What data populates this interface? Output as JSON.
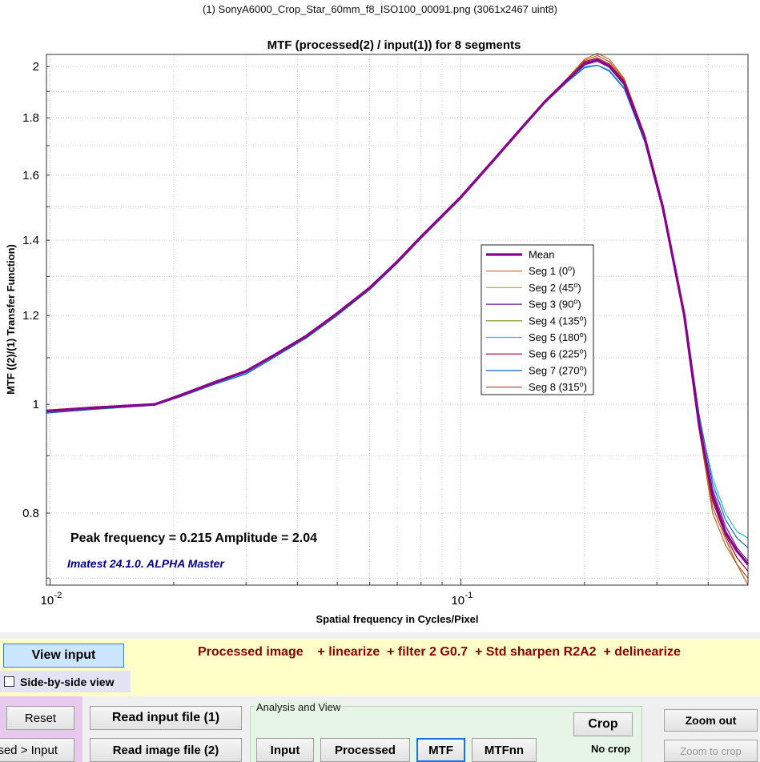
{
  "window_title": "(1) SonyA6000_Crop_Star_60mm_f8_ISO100_00091.png  (3061x2467  uint8)",
  "chart_data": {
    "type": "line",
    "title": "MTF (processed(2) / input(1)) for 8 segments",
    "xlabel": "Spatial frequency in Cycles/Pixel",
    "ylabel": "MTF  ((2)/(1) Transfer Function)",
    "xscale": "log",
    "yscale": "log",
    "xlim": [
      0.0098,
      0.5
    ],
    "ylim": [
      0.69,
      2.05
    ],
    "grid": true,
    "legend_position": "center-right",
    "x_ticks": [
      0.01,
      0.1
    ],
    "x_tick_labels": [
      "10",
      "10"
    ],
    "x_tick_exponents": [
      "-2",
      "-1"
    ],
    "y_ticks": [
      0.8,
      1,
      1.2,
      1.4,
      1.6,
      1.8,
      2
    ],
    "y_tick_labels": [
      "0.8",
      "1",
      "1.2",
      "1.4",
      "1.6",
      "1.8",
      "2"
    ],
    "x": [
      0.0098,
      0.013,
      0.018,
      0.021,
      0.025,
      0.03,
      0.035,
      0.042,
      0.05,
      0.06,
      0.07,
      0.08,
      0.1,
      0.12,
      0.14,
      0.16,
      0.18,
      0.2,
      0.215,
      0.23,
      0.25,
      0.28,
      0.31,
      0.35,
      0.38,
      0.41,
      0.44,
      0.47,
      0.5
    ],
    "series": [
      {
        "name": "Mean",
        "color": "#8b008b",
        "width": 3.2,
        "values": [
          0.986,
          0.993,
          1.0,
          1.02,
          1.045,
          1.07,
          1.105,
          1.15,
          1.205,
          1.27,
          1.34,
          1.41,
          1.53,
          1.65,
          1.76,
          1.86,
          1.94,
          2.01,
          2.025,
          2.0,
          1.93,
          1.73,
          1.5,
          1.2,
          0.96,
          0.83,
          0.77,
          0.74,
          0.72
        ]
      },
      {
        "name": "Seg 1 (0",
        "degree": "o",
        "suffix": ")",
        "color": "#c8641e",
        "width": 1.2,
        "values": [
          0.984,
          0.992,
          1.0,
          1.02,
          1.045,
          1.07,
          1.106,
          1.152,
          1.207,
          1.272,
          1.342,
          1.412,
          1.532,
          1.652,
          1.762,
          1.862,
          1.945,
          2.03,
          2.055,
          2.03,
          1.95,
          1.74,
          1.5,
          1.2,
          0.95,
          0.8,
          0.75,
          0.72,
          0.69
        ]
      },
      {
        "name": "Seg 2 (45",
        "degree": "o",
        "suffix": ")",
        "color": "#c8b400",
        "width": 1.2,
        "values": [
          0.986,
          0.993,
          1.0,
          1.02,
          1.045,
          1.07,
          1.105,
          1.15,
          1.205,
          1.27,
          1.34,
          1.41,
          1.53,
          1.65,
          1.76,
          1.86,
          1.94,
          2.01,
          2.03,
          2.0,
          1.93,
          1.73,
          1.5,
          1.2,
          0.96,
          0.83,
          0.77,
          0.74,
          0.72
        ]
      },
      {
        "name": "Seg 3 (90",
        "degree": "o",
        "suffix": ")",
        "color": "#6a1b9a",
        "width": 1.2,
        "values": [
          0.987,
          0.994,
          1.0,
          1.021,
          1.046,
          1.071,
          1.106,
          1.151,
          1.206,
          1.271,
          1.341,
          1.411,
          1.531,
          1.651,
          1.761,
          1.861,
          1.942,
          2.015,
          2.03,
          2.005,
          1.935,
          1.735,
          1.5,
          1.2,
          0.96,
          0.84,
          0.78,
          0.745,
          0.725
        ]
      },
      {
        "name": "Seg 4 (135",
        "degree": "o",
        "suffix": ")",
        "color": "#7a8a10",
        "width": 1.2,
        "values": [
          0.986,
          0.993,
          1.0,
          1.02,
          1.045,
          1.07,
          1.105,
          1.15,
          1.205,
          1.27,
          1.34,
          1.41,
          1.53,
          1.65,
          1.76,
          1.86,
          1.94,
          2.01,
          2.025,
          2.0,
          1.93,
          1.73,
          1.5,
          1.2,
          0.96,
          0.83,
          0.77,
          0.74,
          0.72
        ]
      },
      {
        "name": "Seg 5 (180",
        "degree": "o",
        "suffix": ")",
        "color": "#29b6f6",
        "width": 1.2,
        "values": [
          0.983,
          0.99,
          0.999,
          1.018,
          1.042,
          1.066,
          1.1,
          1.146,
          1.2,
          1.266,
          1.336,
          1.406,
          1.526,
          1.646,
          1.756,
          1.856,
          1.935,
          2.0,
          2.005,
          1.985,
          1.915,
          1.72,
          1.49,
          1.2,
          0.97,
          0.86,
          0.8,
          0.77,
          0.76
        ]
      },
      {
        "name": "Seg 6 (225",
        "degree": "o",
        "suffix": ")",
        "color": "#a0001e",
        "width": 1.2,
        "values": [
          0.988,
          0.995,
          1.001,
          1.022,
          1.047,
          1.072,
          1.107,
          1.152,
          1.207,
          1.272,
          1.342,
          1.412,
          1.532,
          1.652,
          1.762,
          1.862,
          1.945,
          2.02,
          2.035,
          2.01,
          1.94,
          1.735,
          1.5,
          1.2,
          0.955,
          0.82,
          0.765,
          0.73,
          0.71
        ]
      },
      {
        "name": "Seg 7 (270",
        "degree": "o",
        "suffix": ")",
        "color": "#1565c0",
        "width": 1.2,
        "values": [
          0.982,
          0.99,
          0.998,
          1.017,
          1.041,
          1.064,
          1.1,
          1.145,
          1.2,
          1.265,
          1.335,
          1.405,
          1.525,
          1.645,
          1.755,
          1.855,
          1.932,
          1.995,
          2.005,
          1.98,
          1.91,
          1.715,
          1.49,
          1.21,
          0.98,
          0.85,
          0.79,
          0.76,
          0.745
        ]
      },
      {
        "name": "Seg 8 (315",
        "degree": "o",
        "suffix": ")",
        "color": "#c0501e",
        "width": 1.2,
        "values": [
          0.987,
          0.994,
          1.001,
          1.021,
          1.046,
          1.071,
          1.106,
          1.151,
          1.206,
          1.271,
          1.341,
          1.411,
          1.531,
          1.651,
          1.761,
          1.861,
          1.943,
          2.025,
          2.045,
          2.02,
          1.945,
          1.74,
          1.5,
          1.2,
          0.95,
          0.81,
          0.76,
          0.72,
          0.7
        ]
      }
    ],
    "annotations": [
      {
        "text": "Peak frequency = 0.215   Amplitude = 2.04",
        "color": "#000000"
      },
      {
        "text": "Imatest 24.1.0. ALPHA Master",
        "color": "#00008b"
      }
    ]
  },
  "controls": {
    "view_input_button": "View input",
    "side_by_side_label": "Side-by-side view",
    "processing_description": "Processed image    + linearize  + filter 2 G0.7  + Std sharpen R2A2  + delinearize",
    "reset_button": "Reset",
    "processed_to_input_button": "sed > Input",
    "read_input_button": "Read input file (1)",
    "read_image_button": "Read image file (2)",
    "analysis_group_label": "Analysis and View",
    "input_button": "Input",
    "processed_button": "Processed",
    "mtf_button": "MTF",
    "mtfnn_button": "MTFnn",
    "crop_button": "Crop",
    "crop_status": "No crop",
    "zoom_out_button": "Zoom out",
    "zoom_to_crop_button": "Zoom to crop"
  }
}
